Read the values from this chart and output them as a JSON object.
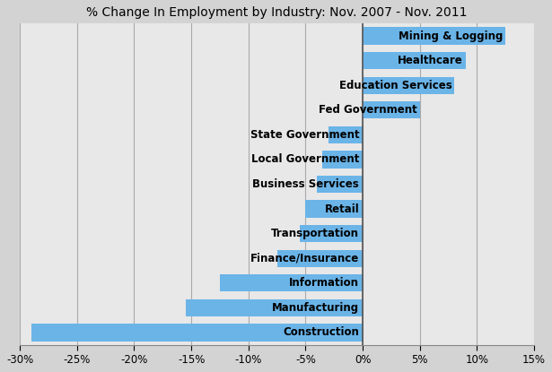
{
  "title": "% Change In Employment by Industry: Nov. 2007 - Nov. 2011",
  "categories": [
    "Mining & Logging",
    "Healthcare",
    "Education Services",
    "Fed Government",
    "State Government",
    "Local Government",
    "Business Services",
    "Retail",
    "Transportation",
    "Finance/Insurance",
    "Information",
    "Manufacturing",
    "Construction"
  ],
  "values": [
    12.5,
    9.0,
    8.0,
    5.0,
    -3.0,
    -3.5,
    -4.0,
    -5.0,
    -5.5,
    -7.5,
    -12.5,
    -15.5,
    -29.0
  ],
  "bar_color": "#6ab4e8",
  "plot_bg_color": "#e8e8e8",
  "fig_bg_color": "#d3d3d3",
  "text_color": "#000000",
  "grid_color": "#aaaaaa",
  "xlim": [
    -30,
    15
  ],
  "xticks": [
    -30,
    -25,
    -20,
    -15,
    -10,
    -5,
    0,
    5,
    10,
    15
  ],
  "title_fontsize": 10,
  "label_fontsize": 8.5,
  "tick_fontsize": 8.5,
  "bar_height": 0.7
}
